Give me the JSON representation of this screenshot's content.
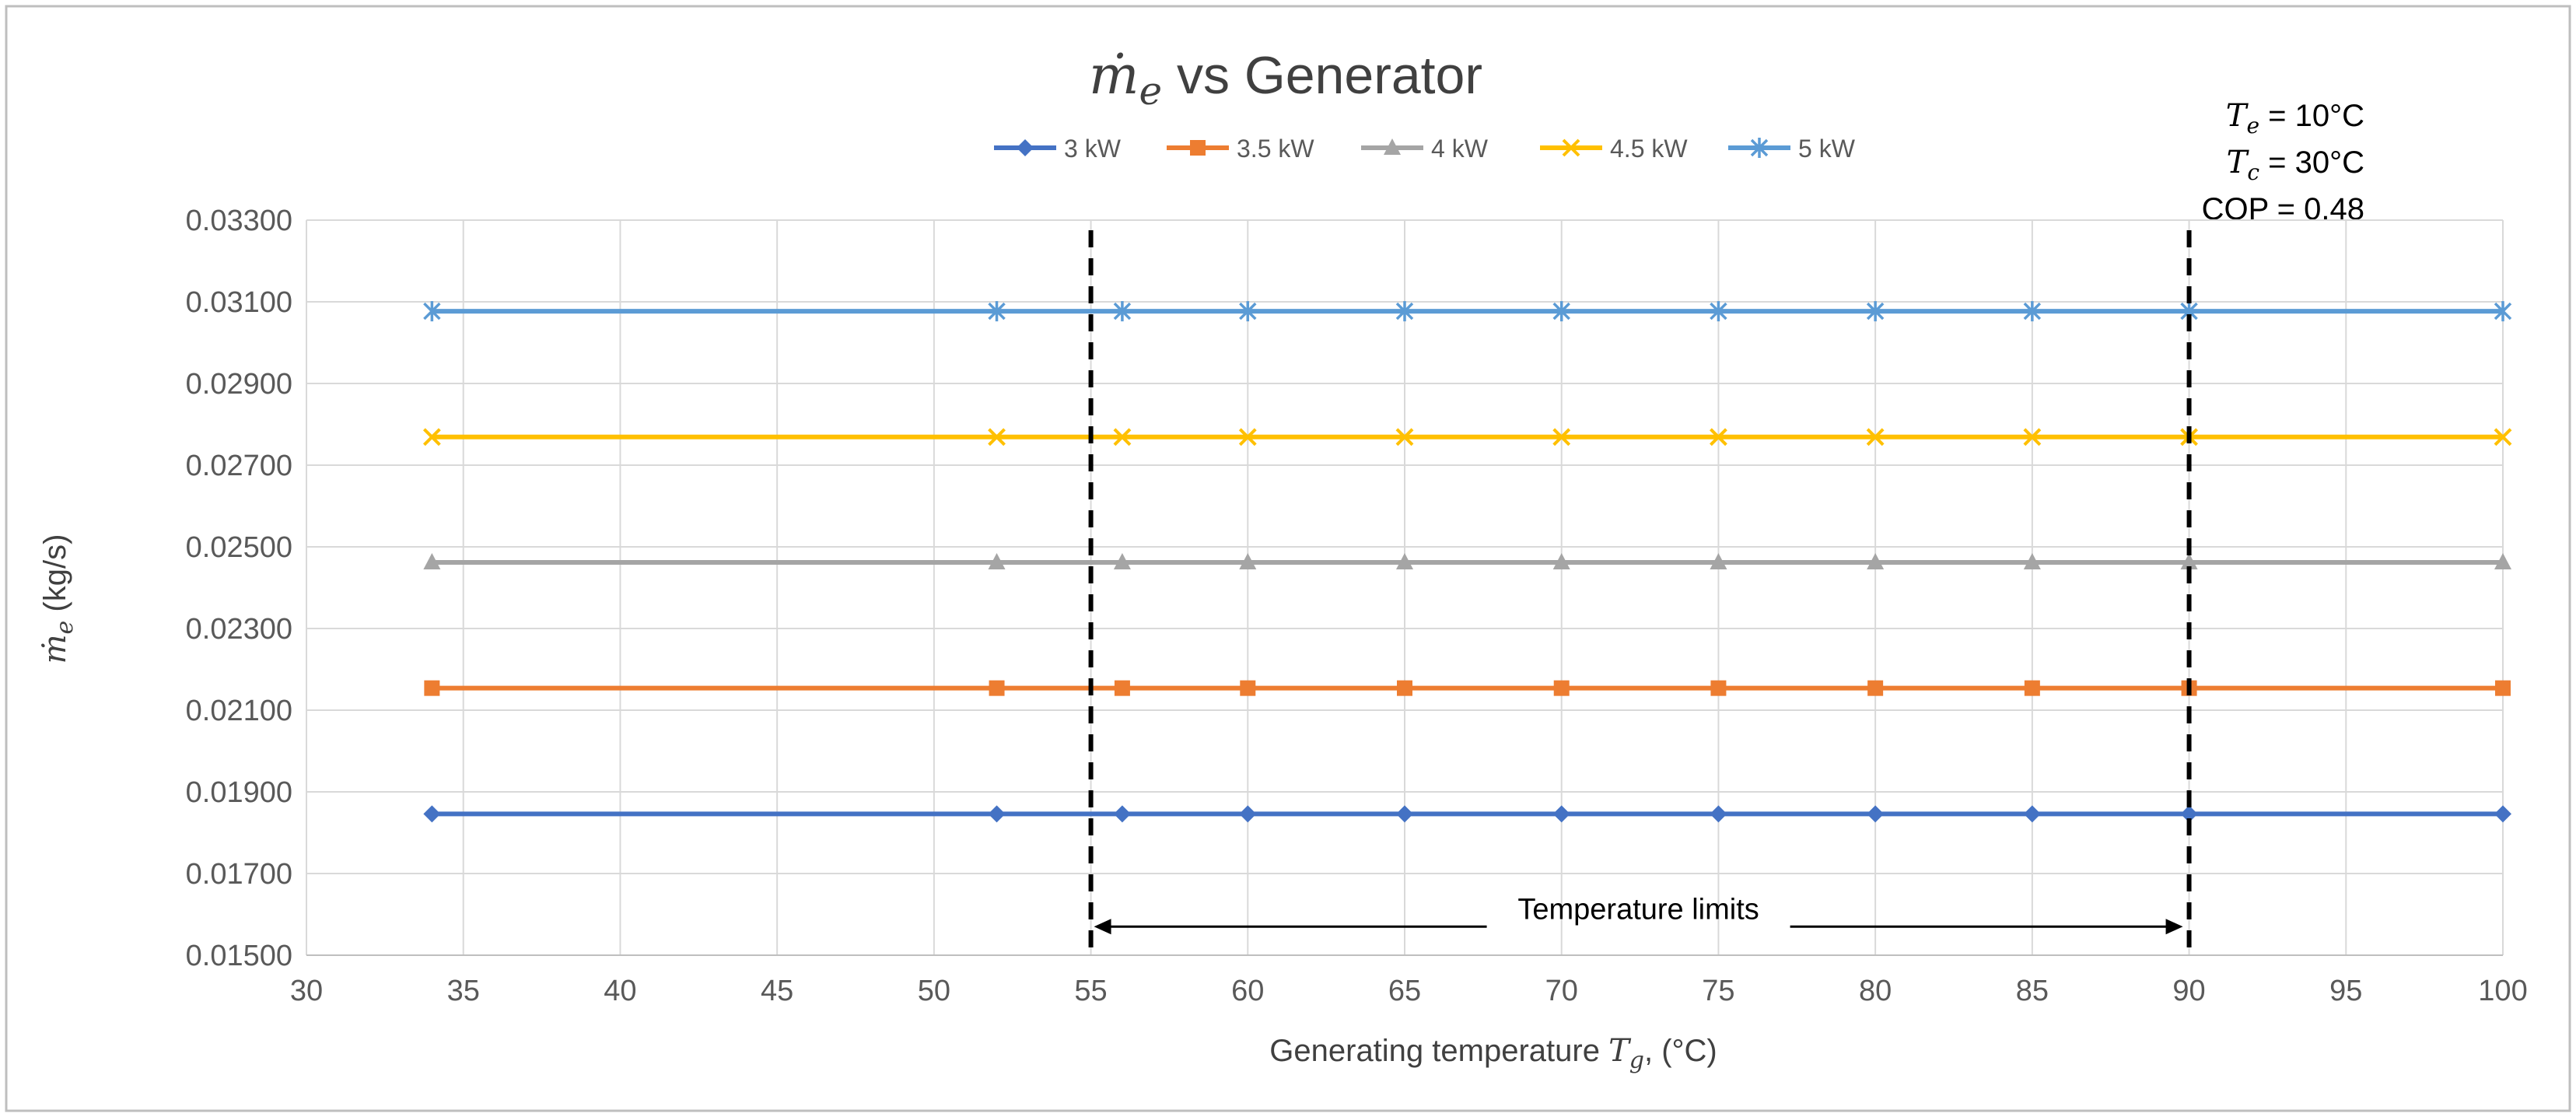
{
  "chart_data": {
    "type": "line",
    "title": {
      "symbol": "ṁ",
      "subscript": "e",
      "text": " vs Generator"
    },
    "xlabel": {
      "text": "Generating temperature ",
      "symbol": "T",
      "subscript": "g",
      "suffix": ", (°C)"
    },
    "ylabel": {
      "symbol": "ṁ",
      "subscript": "e",
      "suffix": " (kg/s)"
    },
    "xlim": [
      30,
      100
    ],
    "ylim": [
      0.015,
      0.033
    ],
    "xticks": [
      30,
      35,
      40,
      45,
      50,
      55,
      60,
      65,
      70,
      75,
      80,
      85,
      90,
      95,
      100
    ],
    "xtick_labels": [
      "30",
      "35",
      "40",
      "45",
      "50",
      "55",
      "60",
      "65",
      "70",
      "75",
      "80",
      "85",
      "90",
      "95",
      "100"
    ],
    "yticks": [
      0.015,
      0.017,
      0.019,
      0.021,
      0.023,
      0.025,
      0.027,
      0.029,
      0.031,
      0.033
    ],
    "ytick_labels": [
      "0.01500",
      "0.01700",
      "0.01900",
      "0.02100",
      "0.02300",
      "0.02500",
      "0.02700",
      "0.02900",
      "0.03100",
      "0.03300"
    ],
    "grid": true,
    "legend_position": "top-center",
    "x": [
      34,
      52,
      56,
      60,
      65,
      70,
      75,
      80,
      85,
      90,
      100
    ],
    "series": [
      {
        "name": "3 kW",
        "color": "#4472C4",
        "marker": "diamond",
        "values": [
          0.01846,
          0.01846,
          0.01846,
          0.01846,
          0.01846,
          0.01846,
          0.01846,
          0.01846,
          0.01846,
          0.01846,
          0.01846
        ]
      },
      {
        "name": "3.5 kW",
        "color": "#ED7D31",
        "marker": "square",
        "values": [
          0.02154,
          0.02154,
          0.02154,
          0.02154,
          0.02154,
          0.02154,
          0.02154,
          0.02154,
          0.02154,
          0.02154,
          0.02154
        ]
      },
      {
        "name": "4 kW",
        "color": "#A5A5A5",
        "marker": "triangle",
        "values": [
          0.02462,
          0.02462,
          0.02462,
          0.02462,
          0.02462,
          0.02462,
          0.02462,
          0.02462,
          0.02462,
          0.02462,
          0.02462
        ]
      },
      {
        "name": "4.5 kW",
        "color": "#FFC000",
        "marker": "x",
        "values": [
          0.02769,
          0.02769,
          0.02769,
          0.02769,
          0.02769,
          0.02769,
          0.02769,
          0.02769,
          0.02769,
          0.02769,
          0.02769
        ]
      },
      {
        "name": "5 kW",
        "color": "#5B9BD5",
        "marker": "star",
        "values": [
          0.03077,
          0.03077,
          0.03077,
          0.03077,
          0.03077,
          0.03077,
          0.03077,
          0.03077,
          0.03077,
          0.03077,
          0.03077
        ]
      }
    ],
    "vlines": [
      55,
      90
    ],
    "annotation": {
      "text": "Temperature limits",
      "x_from": 55,
      "x_to": 90,
      "y": 0.0157
    },
    "conditions": [
      {
        "symbol": "T",
        "subscript": "e",
        "value": " = 10°C"
      },
      {
        "symbol": "T",
        "subscript": "c",
        "value": " = 30°C"
      },
      {
        "symbol": "COP",
        "subscript": "",
        "value": " = 0.48"
      }
    ]
  }
}
